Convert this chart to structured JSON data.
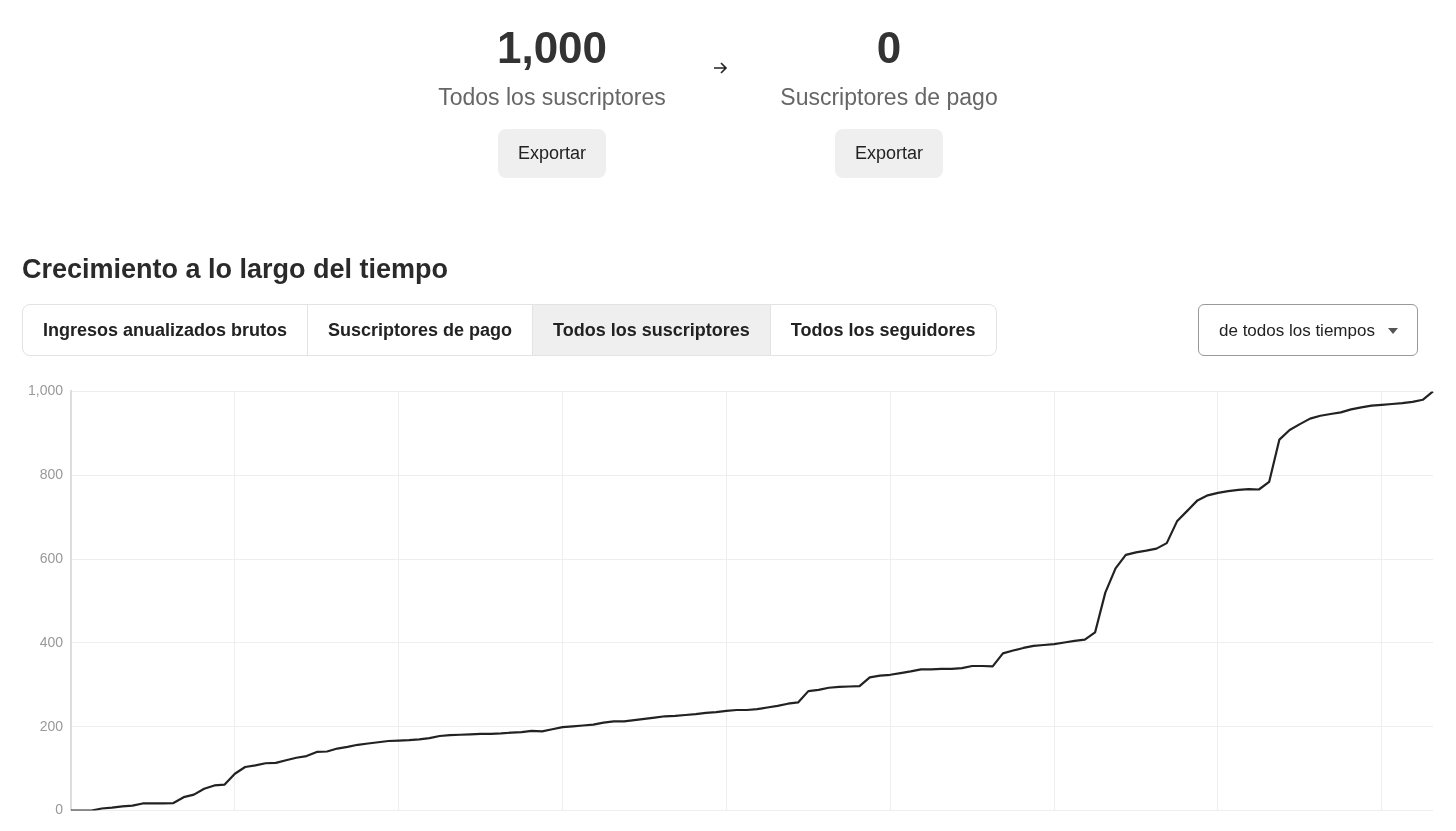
{
  "chart_data": [
    {
      "type": "other",
      "annotations": [
        "1,000",
        "Todos los suscriptores",
        "Exportar",
        "0",
        "Suscriptores de pago",
        "Exportar"
      ]
    },
    {
      "type": "line",
      "title": "Crecimiento a lo largo del tiempo",
      "annotations": [
        "Ingresos anualizados brutos",
        "Suscriptores de pago",
        "Todos los suscriptores",
        "Todos los seguidores",
        "de todos los tiempos"
      ],
      "categories": [
        null,
        null,
        null,
        null,
        null,
        null,
        null,
        null,
        null,
        null,
        null,
        null,
        null,
        null,
        null,
        null,
        null,
        null,
        null,
        null,
        null,
        null,
        null,
        null,
        null,
        null,
        null,
        null,
        null,
        null,
        null,
        null,
        null,
        null,
        null,
        null,
        null,
        null,
        null,
        null,
        null,
        null,
        null,
        null,
        null,
        null,
        null,
        null,
        null,
        null,
        null,
        null,
        null,
        null,
        null,
        null,
        null,
        null,
        null,
        null,
        null,
        null,
        null,
        null,
        null,
        null,
        null,
        null,
        null,
        null,
        null,
        null,
        null,
        null,
        null,
        null,
        null,
        null,
        null,
        null,
        null,
        null,
        null,
        null,
        null,
        null,
        null,
        null,
        null,
        null,
        null,
        null,
        null,
        null,
        null,
        null,
        null,
        null,
        null,
        null,
        null,
        null,
        null,
        null,
        null,
        null,
        null,
        null,
        null,
        null,
        null,
        null,
        null,
        null,
        null,
        null,
        null,
        null,
        null,
        null,
        null,
        null,
        null,
        null,
        null,
        null,
        null,
        null,
        null,
        null,
        null,
        null,
        null,
        null
      ],
      "series": [
        {
          "color": "#222222",
          "values": [
            0,
            0,
            0,
            5,
            7,
            10,
            12,
            17,
            17,
            17,
            18,
            32,
            38,
            52,
            60,
            62,
            88,
            104,
            108,
            113,
            114,
            120,
            126,
            130,
            140,
            141,
            148,
            152,
            157,
            160,
            163,
            166,
            167,
            168,
            170,
            173,
            178,
            180,
            181,
            182,
            183,
            183,
            184,
            186,
            187,
            190,
            189,
            194,
            199,
            201,
            203,
            205,
            210,
            213,
            213,
            216,
            219,
            222,
            225,
            226,
            228,
            230,
            233,
            235,
            238,
            240,
            240,
            242,
            246,
            250,
            255,
            258,
            285,
            288,
            293,
            295,
            296,
            297,
            318,
            322,
            324,
            328,
            332,
            337,
            337,
            338,
            338,
            340,
            345,
            345,
            344,
            375,
            382,
            388,
            393,
            395,
            397,
            401,
            405,
            408,
            425,
            520,
            578,
            610,
            616,
            620,
            625,
            638,
            690,
            715,
            740,
            752,
            758,
            762,
            765,
            767,
            766,
            784,
            885,
            908,
            922,
            935,
            942,
            946,
            950,
            957,
            962,
            966,
            968,
            970,
            972,
            975,
            980,
            1000
          ]
        }
      ],
      "ylim": [
        0,
        1000
      ],
      "yticks": [
        {
          "value": 0,
          "label": "0"
        },
        {
          "value": 200,
          "label": "200"
        },
        {
          "value": 400,
          "label": "400"
        },
        {
          "value": 600,
          "label": "600"
        },
        {
          "value": 800,
          "label": "800"
        },
        {
          "value": 1000,
          "label": "1,000"
        }
      ],
      "grid": true,
      "legend": false,
      "marker": "none",
      "line_style": "solid"
    }
  ]
}
